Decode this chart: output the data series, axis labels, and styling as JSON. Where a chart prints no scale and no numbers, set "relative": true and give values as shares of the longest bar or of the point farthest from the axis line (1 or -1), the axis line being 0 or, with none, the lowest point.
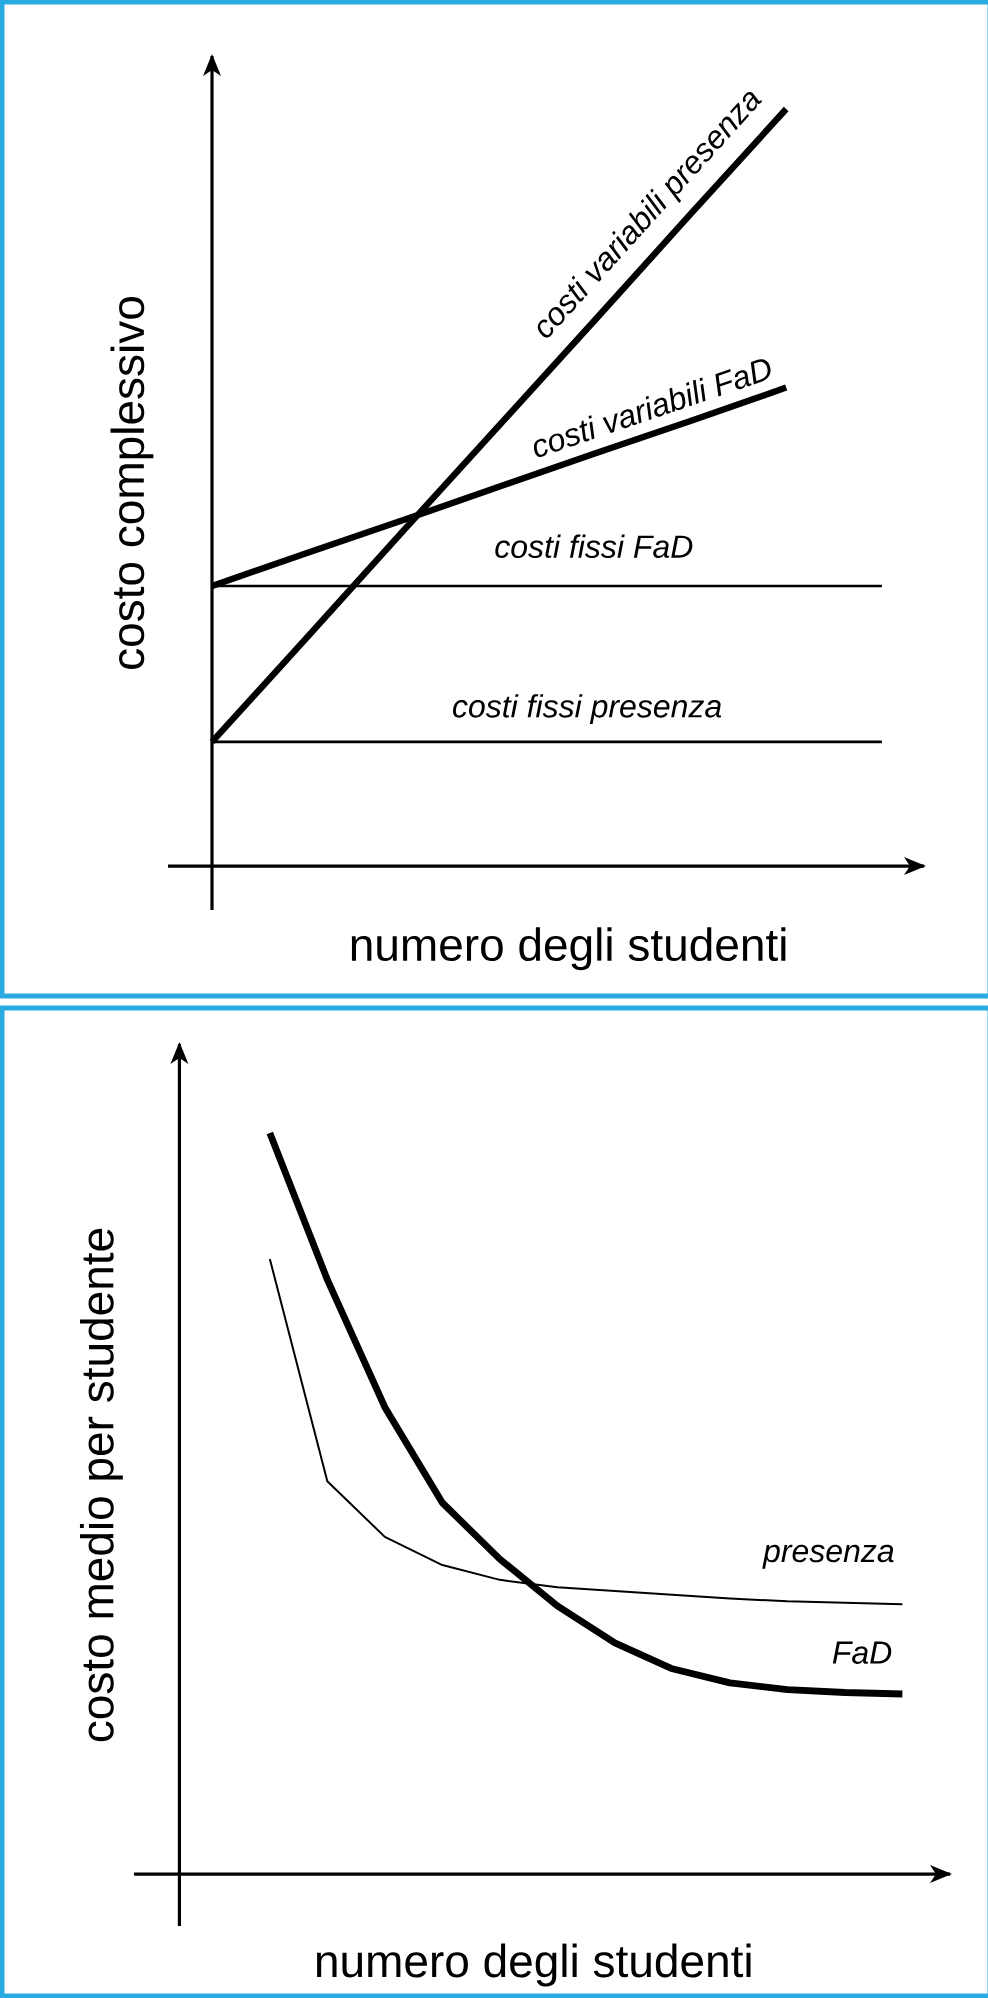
{
  "chart_data": [
    {
      "type": "line",
      "relative": true,
      "xlabel": "numero degli studenti",
      "ylabel": "costo complessivo",
      "categories": [
        null,
        null,
        null,
        null,
        null,
        null,
        null,
        null
      ],
      "series": [
        {
          "name": "costi fissi presenza",
          "color": "#000000",
          "values": [
            0.164,
            0.164,
            0.164,
            0.164,
            0.164,
            0.164,
            0.164,
            0.164
          ]
        },
        {
          "name": "costi fissi FaD",
          "color": "#000000",
          "values": [
            0.37,
            0.37,
            0.37,
            0.37,
            0.37,
            0.37,
            0.37,
            0.37
          ]
        },
        {
          "name": "costi variabili presenza",
          "color": "#000000",
          "values": [
            0.164,
            0.303,
            0.443,
            0.582,
            0.721,
            0.861,
            1.0,
            null
          ]
        },
        {
          "name": "costi variabili FaD",
          "color": "#000000",
          "values": [
            0.37,
            0.414,
            0.457,
            0.501,
            0.545,
            0.588,
            0.632,
            null
          ]
        }
      ]
    },
    {
      "type": "line",
      "relative": true,
      "xlabel": "numero degli studenti",
      "ylabel": "costo medio per studente",
      "categories": [
        null,
        null,
        null,
        null,
        null,
        null,
        null,
        null,
        null,
        null,
        null,
        null
      ],
      "series": [
        {
          "name": "presenza",
          "color": "#000000",
          "values": [
            0.83,
            0.53,
            0.455,
            0.417,
            0.397,
            0.387,
            0.382,
            0.377,
            0.372,
            0.368,
            0.366,
            0.364
          ]
        },
        {
          "name": "FaD",
          "color": "#000000",
          "values": [
            1.0,
            0.802,
            0.63,
            0.501,
            0.425,
            0.362,
            0.312,
            0.277,
            0.258,
            0.249,
            0.245,
            0.243
          ]
        }
      ]
    }
  ]
}
